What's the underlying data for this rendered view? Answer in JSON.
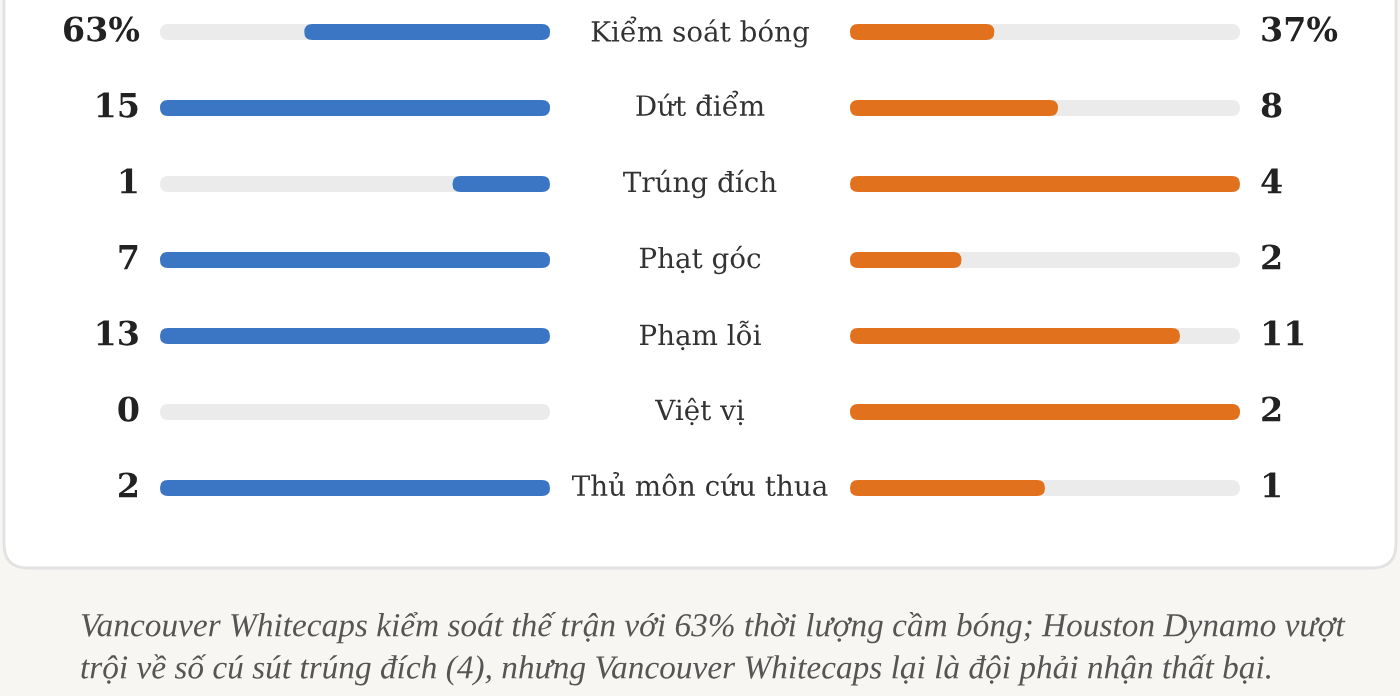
{
  "chart_data": {
    "type": "other",
    "categories": [
      "Kiểm soát bóng",
      "Dứt điểm",
      "Trúng đích",
      "Phạt góc",
      "Phạm lỗi",
      "Việt vị",
      "Thủ môn cứu thua"
    ],
    "series": [
      {
        "color": "#3a76c4",
        "values": [
          63,
          15,
          1,
          7,
          13,
          0,
          2
        ],
        "value_labels": [
          "63%",
          "15",
          "1",
          "7",
          "13",
          "0",
          "2"
        ]
      },
      {
        "color": "#e2711d",
        "values": [
          37,
          8,
          4,
          2,
          11,
          2,
          1
        ],
        "value_labels": [
          "37%",
          "8",
          "4",
          "2",
          "11",
          "2",
          "1"
        ]
      }
    ],
    "annotations": [
      "Vancouver Whitecaps kiểm soát thế trận với 63% thời lượng cầm bóng; Houston Dynamo vượt trội về số cú sút trúng đích (4), nhưng Vancouver Whitecaps lại là đội phải nhận thất bại."
    ]
  }
}
